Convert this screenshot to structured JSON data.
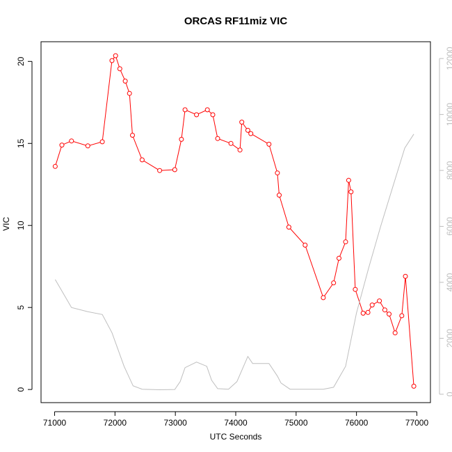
{
  "chart_data": {
    "type": "line",
    "title": "ORCAS RF11miz VIC",
    "xlabel": "UTC Seconds",
    "ylabel": "VIC",
    "xlim": [
      70775,
      77225
    ],
    "ylim": [
      -0.8,
      21.2
    ],
    "y2lim": [
      -300,
      12600
    ],
    "x_ticks": [
      71000,
      72000,
      73000,
      74000,
      75000,
      76000,
      77000
    ],
    "y_ticks": [
      0,
      5,
      10,
      15,
      20
    ],
    "y2_ticks": [
      0,
      2000,
      4000,
      6000,
      8000,
      10000,
      12000
    ],
    "grid": false,
    "colors": {
      "vic": "#ff0000",
      "secondary": "#bebebe",
      "right_axis": "#bdbdbd"
    },
    "series": [
      {
        "axis": "left",
        "style": "line+points",
        "color": "#ff0000",
        "x": [
          71010,
          71120,
          71280,
          71550,
          71790,
          71950,
          72010,
          72080,
          72170,
          72240,
          72290,
          72450,
          72740,
          72990,
          73100,
          73160,
          73350,
          73530,
          73620,
          73700,
          73920,
          74070,
          74100,
          74200,
          74250,
          74550,
          74690,
          74720,
          74880,
          75150,
          75450,
          75620,
          75710,
          75820,
          75870,
          75910,
          75980,
          76110,
          76190,
          76260,
          76380,
          76470,
          76540,
          76640,
          76750,
          76810,
          76950
        ],
        "y": [
          13.6,
          14.9,
          15.15,
          14.85,
          15.1,
          20.05,
          20.35,
          19.55,
          18.8,
          18.05,
          15.5,
          14.0,
          13.35,
          13.4,
          15.25,
          17.05,
          16.75,
          17.05,
          16.75,
          15.3,
          15.0,
          14.6,
          16.3,
          15.8,
          15.6,
          14.95,
          13.2,
          11.85,
          9.9,
          8.8,
          5.6,
          6.5,
          8.0,
          9.0,
          12.75,
          12.05,
          6.1,
          4.65,
          4.7,
          5.15,
          5.4,
          4.85,
          4.6,
          3.45,
          4.5,
          6.9,
          0.2
        ]
      },
      {
        "axis": "right",
        "style": "line",
        "color": "#bebebe",
        "x": [
          71010,
          71280,
          71550,
          71790,
          71950,
          72050,
          72150,
          72300,
          72450,
          72740,
          72990,
          73080,
          73160,
          73350,
          73520,
          73600,
          73700,
          73880,
          74020,
          74200,
          74280,
          74550,
          74690,
          74750,
          74900,
          75150,
          75450,
          75620,
          75820,
          76000,
          76200,
          76400,
          76600,
          76800,
          76950
        ],
        "y": [
          4100,
          3100,
          2950,
          2850,
          2200,
          1600,
          1000,
          300,
          180,
          160,
          170,
          450,
          950,
          1150,
          1000,
          500,
          200,
          180,
          450,
          1350,
          1100,
          1100,
          650,
          400,
          180,
          180,
          180,
          250,
          1000,
          2900,
          4500,
          6000,
          7400,
          8800,
          9300
        ]
      }
    ]
  }
}
